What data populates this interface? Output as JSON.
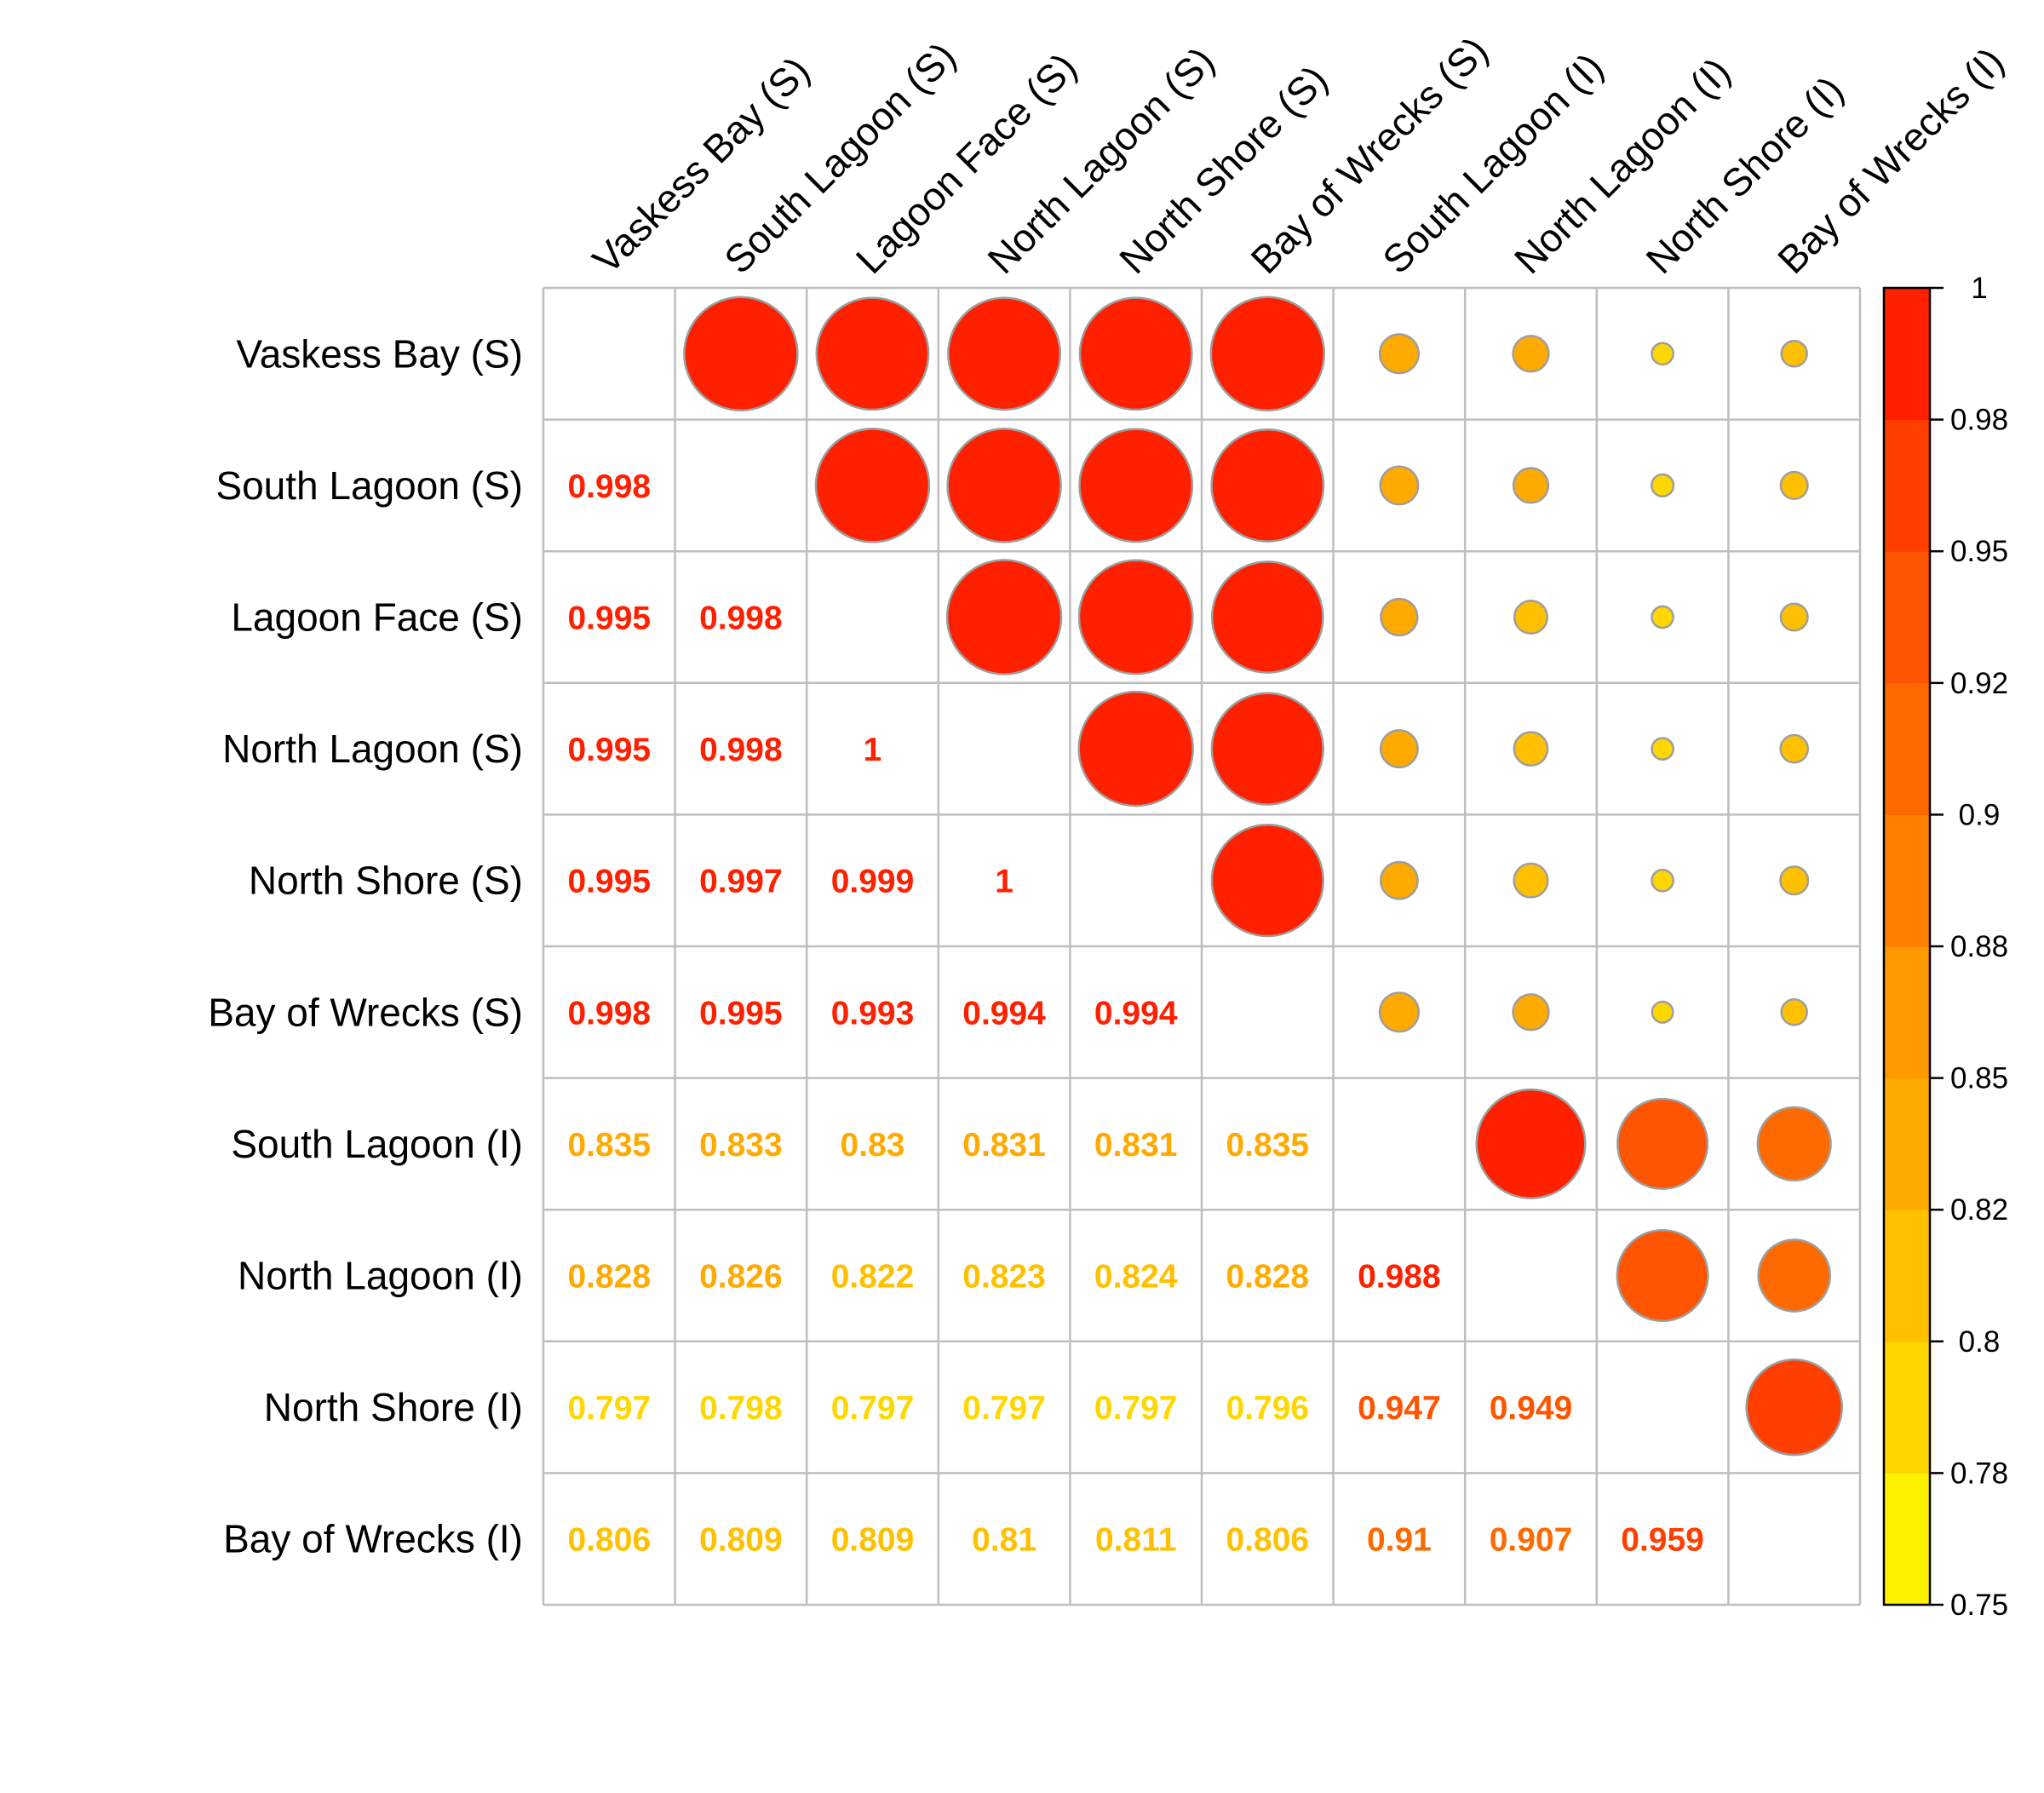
{
  "chart_data": {
    "type": "heatmap",
    "title": "",
    "xlabel": "",
    "ylabel": "",
    "labels": [
      "Vaskess Bay (S)",
      "South Lagoon (S)",
      "Lagoon Face (S)",
      "North Lagoon (S)",
      "North Shore (S)",
      "Bay of Wrecks (S)",
      "South Lagoon (I)",
      "North Lagoon (I)",
      "North Shore (I)",
      "Bay of Wrecks (I)"
    ],
    "matrix": [
      [
        1,
        0.998,
        0.995,
        0.995,
        0.995,
        0.998,
        0.835,
        0.828,
        0.797,
        0.806
      ],
      [
        0.998,
        1,
        0.998,
        0.998,
        0.997,
        0.995,
        0.833,
        0.826,
        0.798,
        0.809
      ],
      [
        0.995,
        0.998,
        1,
        1,
        0.999,
        0.993,
        0.83,
        0.822,
        0.797,
        0.809
      ],
      [
        0.995,
        0.998,
        1,
        1,
        1,
        0.994,
        0.831,
        0.823,
        0.797,
        0.81
      ],
      [
        0.995,
        0.997,
        0.999,
        1,
        1,
        0.994,
        0.831,
        0.824,
        0.797,
        0.811
      ],
      [
        0.998,
        0.995,
        0.993,
        0.994,
        0.994,
        1,
        0.835,
        0.828,
        0.796,
        0.806
      ],
      [
        0.835,
        0.833,
        0.83,
        0.831,
        0.831,
        0.835,
        1,
        0.988,
        0.947,
        0.91
      ],
      [
        0.828,
        0.826,
        0.822,
        0.823,
        0.824,
        0.828,
        0.988,
        1,
        0.949,
        0.907
      ],
      [
        0.797,
        0.798,
        0.797,
        0.797,
        0.797,
        0.796,
        0.947,
        0.949,
        1,
        0.959
      ],
      [
        0.806,
        0.809,
        0.809,
        0.81,
        0.811,
        0.806,
        0.91,
        0.907,
        0.959,
        1
      ]
    ],
    "display": {
      "lower_triangle": "numbers",
      "upper_triangle": "circles",
      "diagonal": "blank",
      "grid": true
    },
    "color_scale": {
      "range": [
        0.75,
        1
      ],
      "tick_labels": [
        "1",
        "0.98",
        "0.95",
        "0.92",
        "0.9",
        "0.88",
        "0.85",
        "0.82",
        "0.8",
        "0.78",
        "0.75"
      ],
      "colors_low_to_high": [
        "#FFF200",
        "#FFD700",
        "#FFC000",
        "#FFAA00",
        "#FF9900",
        "#FF8000",
        "#FF6A00",
        "#FF5500",
        "#FF3F00",
        "#FF2000"
      ],
      "position": "right"
    }
  }
}
